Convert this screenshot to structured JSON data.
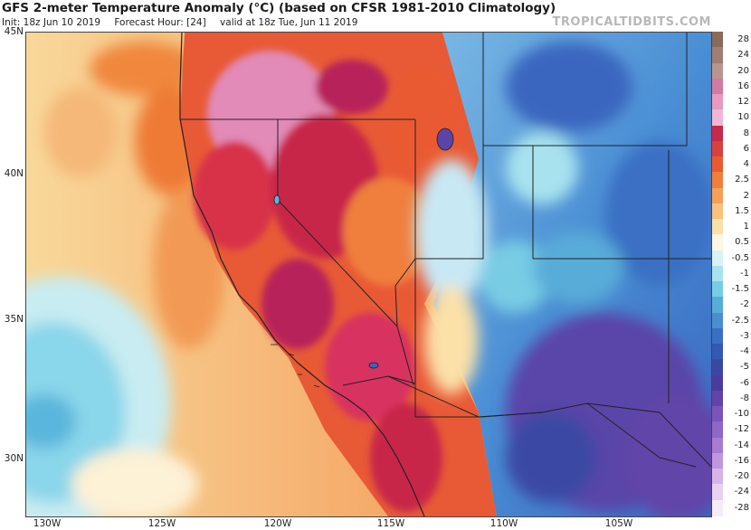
{
  "header": {
    "title": "GFS 2-meter Temperature Anomaly (°C) (based on CFSR 1981-2010 Climatology)",
    "init": "Init: 18z Jun 10 2019",
    "forecast_hour": "Forecast Hour: [24]",
    "valid": "valid at 18z Tue, Jun 11 2019",
    "brand": "TROPICALTIDBITS.COM"
  },
  "axes": {
    "lat_labels": [
      "45N",
      "40N",
      "35N",
      "30N"
    ],
    "lon_labels": [
      "130W",
      "125W",
      "120W",
      "115W",
      "110W",
      "105W"
    ]
  },
  "legend": {
    "items": [
      {
        "label": "28",
        "color": "#8a6a5a"
      },
      {
        "label": "24",
        "color": "#a07e72"
      },
      {
        "label": "20",
        "color": "#b8968c"
      },
      {
        "label": "16",
        "color": "#d27aa4"
      },
      {
        "label": "12",
        "color": "#e89ac0"
      },
      {
        "label": "10",
        "color": "#f2b6d2"
      },
      {
        "label": "8",
        "color": "#c8284a"
      },
      {
        "label": "6",
        "color": "#d8403c"
      },
      {
        "label": "4",
        "color": "#ea5a30"
      },
      {
        "label": "2.5",
        "color": "#f07e3c"
      },
      {
        "label": "2",
        "color": "#f5a05a"
      },
      {
        "label": "1.5",
        "color": "#f8c27e"
      },
      {
        "label": "1",
        "color": "#fbe0a8"
      },
      {
        "label": "0.5",
        "color": "#fef6e2"
      },
      {
        "label": "-0.5",
        "color": "#d8f2f6"
      },
      {
        "label": "-1",
        "color": "#a8e2ee"
      },
      {
        "label": "-1.5",
        "color": "#78cce4"
      },
      {
        "label": "-2",
        "color": "#58acd8"
      },
      {
        "label": "-2.5",
        "color": "#4a8ed0"
      },
      {
        "label": "-3",
        "color": "#3a70c4"
      },
      {
        "label": "-4",
        "color": "#3458b4"
      },
      {
        "label": "-5",
        "color": "#3a48a4"
      },
      {
        "label": "-6",
        "color": "#4a3c9c"
      },
      {
        "label": "-8",
        "color": "#6244a8"
      },
      {
        "label": "-10",
        "color": "#7a54b8"
      },
      {
        "label": "-12",
        "color": "#9066c6"
      },
      {
        "label": "-14",
        "color": "#a87ad2"
      },
      {
        "label": "-16",
        "color": "#c096de"
      },
      {
        "label": "-20",
        "color": "#d6b4e8"
      },
      {
        "label": "-24",
        "color": "#e8d2f0"
      },
      {
        "label": "-28",
        "color": "#f6ecf8"
      }
    ]
  },
  "map": {
    "ocean_colors": [
      "#f8d89a",
      "#f5b070",
      "#f0873e"
    ],
    "pacific_cool_colors": [
      "#c8ecf2",
      "#8ad6ea",
      "#5ab6dc"
    ],
    "west_hot_colors": [
      "#e85a36",
      "#d8304a",
      "#b8205a",
      "#e28ab8"
    ],
    "east_cool_colors": [
      "#7ab8e4",
      "#4a8ed4",
      "#3a66c0",
      "#5a44a8"
    ],
    "border_color": "#222222"
  }
}
